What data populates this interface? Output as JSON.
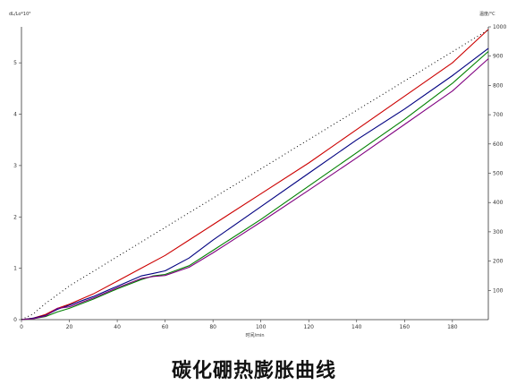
{
  "caption": "碳化硼热膨胀曲线",
  "chart_data": {
    "type": "line",
    "title": "",
    "xlabel": "时间/min",
    "ylabel_left": "dL/Lo*10³",
    "ylabel_right": "温度/°C",
    "xlim": [
      0,
      195
    ],
    "ylim_left": [
      0,
      5.7
    ],
    "ylim_right": [
      0,
      1000
    ],
    "x_ticks": [
      0,
      20,
      40,
      60,
      80,
      100,
      120,
      140,
      160,
      180
    ],
    "y_left_ticks": [
      0,
      1,
      2,
      3,
      4,
      5
    ],
    "y_right_ticks": [
      100,
      200,
      300,
      400,
      500,
      600,
      700,
      800,
      900,
      1000
    ],
    "grid": false,
    "series": [
      {
        "color": "#cc0000",
        "axis": "left",
        "x": [
          0,
          5,
          10,
          15,
          20,
          30,
          40,
          50,
          60,
          70,
          80,
          100,
          120,
          140,
          160,
          180,
          195
        ],
        "y": [
          0.0,
          0.03,
          0.1,
          0.22,
          0.3,
          0.5,
          0.75,
          1.0,
          1.25,
          1.55,
          1.85,
          2.45,
          3.05,
          3.7,
          4.35,
          5.0,
          5.65
        ]
      },
      {
        "color": "#000080",
        "axis": "left",
        "x": [
          0,
          5,
          10,
          15,
          20,
          30,
          40,
          50,
          55,
          60,
          70,
          80,
          100,
          120,
          140,
          160,
          180,
          195
        ],
        "y": [
          0.0,
          0.03,
          0.08,
          0.2,
          0.28,
          0.45,
          0.65,
          0.85,
          0.9,
          0.95,
          1.2,
          1.55,
          2.2,
          2.85,
          3.5,
          4.1,
          4.75,
          5.28
        ]
      },
      {
        "color": "#008000",
        "axis": "left",
        "x": [
          0,
          5,
          10,
          15,
          20,
          30,
          40,
          50,
          55,
          60,
          70,
          80,
          100,
          120,
          140,
          160,
          180,
          195
        ],
        "y": [
          0.0,
          0.02,
          0.06,
          0.15,
          0.22,
          0.4,
          0.6,
          0.78,
          0.85,
          0.88,
          1.05,
          1.35,
          1.95,
          2.6,
          3.25,
          3.9,
          4.6,
          5.22
        ]
      },
      {
        "color": "#800080",
        "axis": "left",
        "x": [
          0,
          5,
          10,
          15,
          20,
          30,
          40,
          50,
          55,
          60,
          70,
          80,
          100,
          120,
          140,
          160,
          180,
          195
        ],
        "y": [
          0.0,
          0.02,
          0.07,
          0.22,
          0.25,
          0.42,
          0.62,
          0.8,
          0.84,
          0.86,
          1.02,
          1.3,
          1.9,
          2.52,
          3.15,
          3.8,
          4.45,
          5.08
        ]
      },
      {
        "color": "#000000",
        "axis": "right",
        "style": "dotted",
        "x": [
          0,
          5,
          10,
          15,
          20,
          40,
          60,
          80,
          100,
          120,
          140,
          160,
          180,
          195
        ],
        "y": [
          0,
          20,
          55,
          85,
          115,
          215,
          315,
          415,
          515,
          615,
          715,
          815,
          915,
          990
        ]
      }
    ]
  }
}
